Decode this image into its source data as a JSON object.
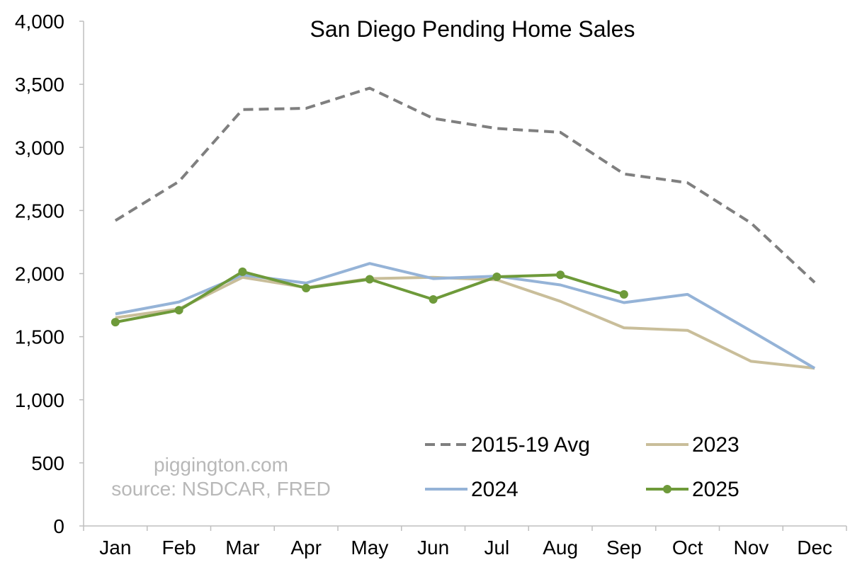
{
  "chart_data": {
    "type": "line",
    "title": "San Diego Pending Home Sales",
    "xlabel": "",
    "ylabel": "",
    "categories": [
      "Jan",
      "Feb",
      "Mar",
      "Apr",
      "May",
      "Jun",
      "Jul",
      "Aug",
      "Sep",
      "Oct",
      "Nov",
      "Dec"
    ],
    "ylim": [
      0,
      4000
    ],
    "yticks": [
      0,
      500,
      1000,
      1500,
      2000,
      2500,
      3000,
      3500,
      4000
    ],
    "ytick_labels": [
      "0",
      "500",
      "1,000",
      "1,500",
      "2,000",
      "2,500",
      "3,000",
      "3,500",
      "4,000"
    ],
    "grid": false,
    "legend_position": "bottom-right",
    "series": [
      {
        "name": "2015-19 Avg",
        "color": "#7f7f7f",
        "style": "dashed",
        "values": [
          2420,
          2730,
          3300,
          3310,
          3470,
          3230,
          3150,
          3120,
          2790,
          2720,
          2400,
          1930
        ]
      },
      {
        "name": "2023",
        "color": "#c9be9a",
        "style": "solid",
        "values": [
          1650,
          1720,
          1970,
          1890,
          1960,
          1970,
          1950,
          1780,
          1570,
          1550,
          1305,
          1250
        ]
      },
      {
        "name": "2024",
        "color": "#95b3d7",
        "style": "solid",
        "values": [
          1680,
          1775,
          1990,
          1925,
          2080,
          1960,
          1980,
          1910,
          1770,
          1835,
          1545,
          1250
        ]
      },
      {
        "name": "2025",
        "color": "#6e9a3a",
        "style": "solid-markers",
        "values": [
          1615,
          1710,
          2015,
          1885,
          1955,
          1795,
          1975,
          1990,
          1835,
          null,
          null,
          null
        ]
      }
    ],
    "annotations": [
      "piggington.com",
      "source: NSDCAR, FRED"
    ]
  }
}
